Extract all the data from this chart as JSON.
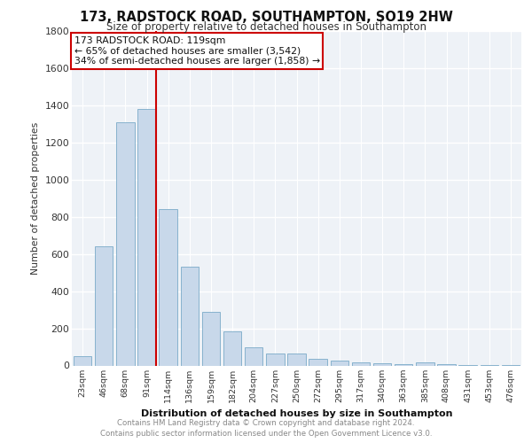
{
  "title": "173, RADSTOCK ROAD, SOUTHAMPTON, SO19 2HW",
  "subtitle": "Size of property relative to detached houses in Southampton",
  "xlabel": "Distribution of detached houses by size in Southampton",
  "ylabel": "Number of detached properties",
  "categories": [
    "23sqm",
    "46sqm",
    "68sqm",
    "91sqm",
    "114sqm",
    "136sqm",
    "159sqm",
    "182sqm",
    "204sqm",
    "227sqm",
    "250sqm",
    "272sqm",
    "295sqm",
    "317sqm",
    "340sqm",
    "363sqm",
    "385sqm",
    "408sqm",
    "431sqm",
    "453sqm",
    "476sqm"
  ],
  "values": [
    50,
    640,
    1310,
    1380,
    840,
    530,
    290,
    185,
    100,
    65,
    65,
    35,
    25,
    18,
    12,
    8,
    15,
    5,
    3,
    2,
    2
  ],
  "bar_color": "#c8d8ea",
  "bar_edge_color": "#7aaac8",
  "ylim": [
    0,
    1800
  ],
  "yticks": [
    0,
    200,
    400,
    600,
    800,
    1000,
    1200,
    1400,
    1600,
    1800
  ],
  "vline_color": "#cc0000",
  "annotation_box_text": "173 RADSTOCK ROAD: 119sqm\n← 65% of detached houses are smaller (3,542)\n34% of semi-detached houses are larger (1,858) →",
  "annotation_box_color": "#cc0000",
  "bg_color": "#eef2f7",
  "grid_color": "#ffffff",
  "footer_line1": "Contains HM Land Registry data © Crown copyright and database right 2024.",
  "footer_line2": "Contains public sector information licensed under the Open Government Licence v3.0."
}
